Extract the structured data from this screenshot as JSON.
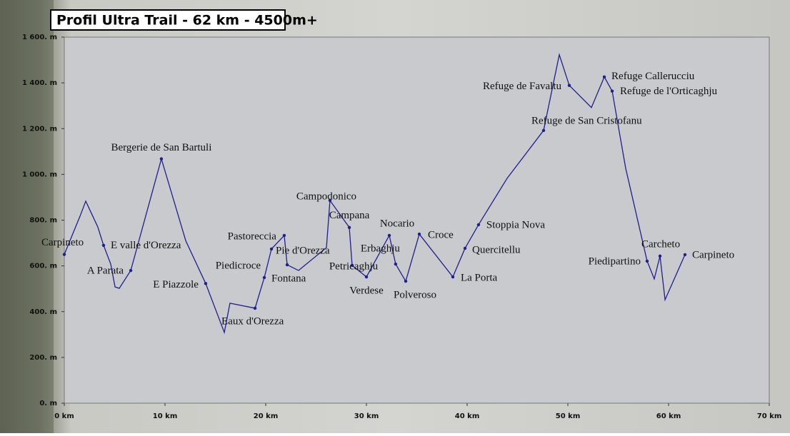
{
  "chart_data": {
    "type": "line",
    "title": "Profil Ultra Trail - 62 km - 4500m+",
    "x": [
      0,
      1.56,
      2.13,
      3.33,
      3.9,
      4.61,
      5.04,
      5.46,
      6.6,
      9.64,
      12.06,
      14.04,
      15.89,
      16.45,
      18.94,
      19.86,
      20.57,
      21.84,
      22.13,
      23.26,
      26.03,
      26.38,
      28.3,
      28.58,
      30.0,
      32.27,
      32.9,
      33.9,
      35.25,
      38.58,
      39.79,
      41.13,
      43.97,
      47.59,
      49.15,
      50.14,
      52.34,
      53.62,
      54.4,
      55.74,
      57.87,
      58.58,
      59.15,
      59.65,
      61.63
    ],
    "series": [
      {
        "color": "#1f1f8f",
        "values": [
          650,
          817,
          883,
          770,
          690,
          608,
          508,
          502,
          580,
          1068,
          710,
          523,
          309,
          437,
          415,
          549,
          674,
          733,
          605,
          580,
          680,
          886,
          768,
          602,
          552,
          733,
          608,
          533,
          739,
          552,
          677,
          780,
          983,
          1192,
          1523,
          1389,
          1292,
          1426,
          1364,
          1027,
          621,
          543,
          643,
          452,
          649
        ],
        "point_labels": [
          "Carpineto",
          null,
          null,
          null,
          "E valle d'Orezza",
          null,
          null,
          null,
          "A Parata",
          "Bergerie de San Bartuli",
          null,
          "E Piazzole",
          null,
          null,
          "Eaux d'Orezza",
          "Fontana",
          "Piedicroce",
          "Pastoreccia",
          "Pie d'Orezza",
          null,
          null,
          "Campodonico",
          "Campana",
          "Petricaghju",
          "Verdese",
          "Nocario",
          "Erbaghju",
          "Polveroso",
          "Croce",
          "La Porta",
          "Quercitellu",
          "Stoppia Nova",
          null,
          "Refuge de San Cristofanu",
          null,
          "Refuge de Favaltu",
          null,
          "Refuge Callerucciu",
          "Refuge de l'Orticaghju",
          null,
          "Piedipartino",
          null,
          "Carcheto",
          null,
          "Carpineto"
        ]
      }
    ],
    "xlim": [
      0,
      70
    ],
    "xticks": [
      {
        "value": 0,
        "label": "0 km"
      },
      {
        "value": 10,
        "label": "10 km"
      },
      {
        "value": 20,
        "label": "20 km"
      },
      {
        "value": 30,
        "label": "30 km"
      },
      {
        "value": 40,
        "label": "40 km"
      },
      {
        "value": 50,
        "label": "50 km"
      },
      {
        "value": 60,
        "label": "60 km"
      },
      {
        "value": 70,
        "label": "70 km"
      }
    ],
    "ylim": [
      0,
      1600
    ],
    "yticks": [
      {
        "value": 0,
        "label": "0. m"
      },
      {
        "value": 200,
        "label": "200. m"
      },
      {
        "value": 400,
        "label": "400. m"
      },
      {
        "value": 600,
        "label": "600. m"
      },
      {
        "value": 800,
        "label": "800. m"
      },
      {
        "value": 1000,
        "label": "1 000. m"
      },
      {
        "value": 1200,
        "label": "1 200. m"
      },
      {
        "value": 1400,
        "label": "1 400. m"
      },
      {
        "value": 1600,
        "label": "1 600. m"
      }
    ]
  }
}
